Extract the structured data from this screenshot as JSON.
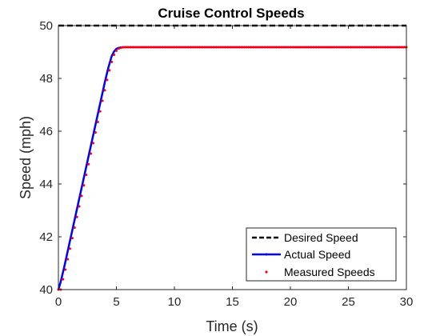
{
  "chart_data": {
    "type": "line",
    "title": "Cruise Control Speeds",
    "xlabel": "Time (s)",
    "ylabel": "Speed (mph)",
    "xlim": [
      0,
      30
    ],
    "ylim": [
      40,
      50
    ],
    "xticks": [
      0,
      5,
      10,
      15,
      20,
      25,
      30
    ],
    "yticks": [
      40,
      42,
      44,
      46,
      48,
      50
    ],
    "grid": false,
    "legend_position": "bottom-right",
    "series": [
      {
        "name": "Desired Speed",
        "style": "dashed",
        "color": "#000000",
        "x": [
          0,
          30
        ],
        "y": [
          50,
          50
        ]
      },
      {
        "name": "Actual Speed",
        "style": "solid",
        "color": "#0000ff",
        "x": [
          0,
          0.2,
          0.5,
          1,
          1.5,
          2,
          2.5,
          3,
          3.5,
          4,
          4.3,
          4.6,
          4.8,
          5.0,
          5.2,
          5.5,
          6,
          7,
          10,
          15,
          20,
          25,
          30
        ],
        "y": [
          40,
          40.3,
          40.85,
          41.85,
          42.85,
          43.85,
          44.85,
          45.85,
          46.85,
          47.85,
          48.4,
          48.85,
          49.02,
          49.12,
          49.16,
          49.18,
          49.18,
          49.18,
          49.18,
          49.18,
          49.18,
          49.18,
          49.18
        ]
      },
      {
        "name": "Measured Speeds",
        "style": "markers",
        "color": "#ff0000",
        "sample_interval": 0.2,
        "x_range": [
          0,
          30
        ],
        "rise_rate": 2.0,
        "rise_start_time": 0.3,
        "start_speed": 40,
        "settled_speed": 49.18
      }
    ]
  },
  "colors": {
    "desired": "#000000",
    "actual": "#0000ff",
    "measured": "#ff0000",
    "axis": "#262626"
  }
}
